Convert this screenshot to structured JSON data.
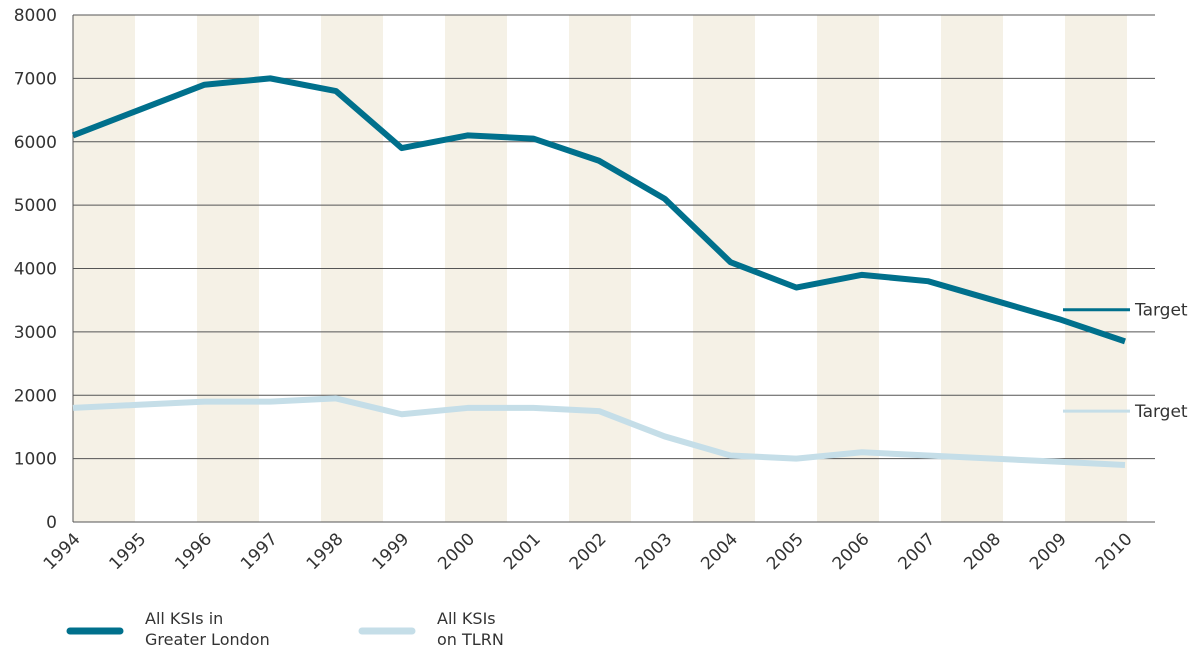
{
  "chart_data": {
    "type": "line",
    "categories": [
      "1994",
      "1995",
      "1996",
      "1997",
      "1998",
      "1999",
      "2000",
      "2001",
      "2002",
      "2003",
      "2004",
      "2005",
      "2006",
      "2007",
      "2008",
      "2009",
      "2010"
    ],
    "series": [
      {
        "name": "All KSIs in Greater London",
        "color": "#00708c",
        "values": [
          6100,
          6500,
          6900,
          7000,
          6800,
          5900,
          6100,
          6050,
          5700,
          5100,
          4100,
          3700,
          3900,
          3800,
          3500,
          3200,
          2850
        ],
        "target": {
          "label": "Target",
          "value": 3350
        }
      },
      {
        "name": "All KSIs on TLRN",
        "color": "#c5dee8",
        "values": [
          1800,
          1850,
          1900,
          1900,
          1950,
          1700,
          1800,
          1800,
          1750,
          1350,
          1050,
          1000,
          1100,
          1050,
          1000,
          950,
          900
        ],
        "target": {
          "label": "Target",
          "value": 1750
        }
      }
    ],
    "ylim": [
      0,
      8000
    ],
    "yticks": [
      0,
      1000,
      2000,
      3000,
      4000,
      5000,
      6000,
      7000,
      8000
    ],
    "grid": true,
    "band_color": "#f5f1e6"
  }
}
